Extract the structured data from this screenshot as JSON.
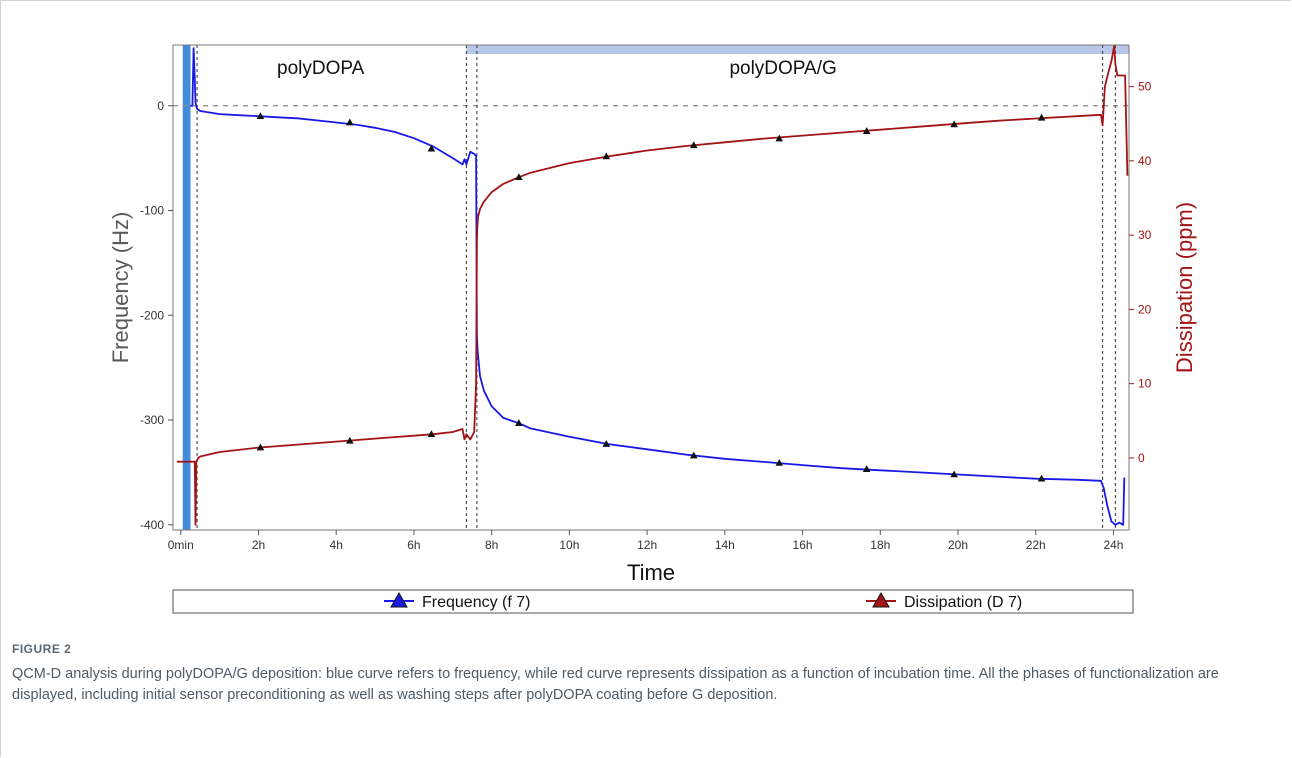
{
  "figure": {
    "label": "FIGURE 2",
    "caption": "QCM-D analysis during polyDOPA/G deposition: blue curve refers to frequency, while red curve represents dissipation as a function of incubation time. All the phases of functionalization are displayed, including initial sensor preconditioning as well as washing steps after polyDOPA coating before G deposition."
  },
  "chart_data": {
    "type": "line",
    "xlabel": "Time",
    "ylabel_left": "Frequency (Hz)",
    "ylabel_right": "Dissipation (ppm)",
    "x_unit": "hours",
    "xlim": [
      -0.2,
      24.4
    ],
    "ylim_left": [
      -405,
      58
    ],
    "ylim_right": [
      -9.7,
      55.6
    ],
    "x_ticks": [
      {
        "value": 0,
        "label": "0min"
      },
      {
        "value": 2,
        "label": "2h"
      },
      {
        "value": 4,
        "label": "4h"
      },
      {
        "value": 6,
        "label": "6h"
      },
      {
        "value": 8,
        "label": "8h"
      },
      {
        "value": 10,
        "label": "10h"
      },
      {
        "value": 12,
        "label": "12h"
      },
      {
        "value": 14,
        "label": "14h"
      },
      {
        "value": 16,
        "label": "16h"
      },
      {
        "value": 18,
        "label": "18h"
      },
      {
        "value": 20,
        "label": "20h"
      },
      {
        "value": 22,
        "label": "22h"
      },
      {
        "value": 24,
        "label": "24h"
      }
    ],
    "y_ticks_left": [
      {
        "value": 0,
        "label": "0"
      },
      {
        "value": -100,
        "label": "-100"
      },
      {
        "value": -200,
        "label": "-200"
      },
      {
        "value": -300,
        "label": "-300"
      },
      {
        "value": -400,
        "label": "-400"
      }
    ],
    "y_ticks_right": [
      {
        "value": 50,
        "label": "50"
      },
      {
        "value": 40,
        "label": "40"
      },
      {
        "value": 30,
        "label": "30"
      },
      {
        "value": 20,
        "label": "20"
      },
      {
        "value": 10,
        "label": "10"
      },
      {
        "value": 0,
        "label": "0"
      }
    ],
    "reference_line": {
      "axis": "left",
      "value": 0
    },
    "phase_lines_x": [
      0.42,
      7.35,
      7.62,
      23.72,
      24.05
    ],
    "phase_labels": [
      {
        "text": "polyDOPA",
        "x": 3.6
      },
      {
        "text": "polyDOPA/G",
        "x": 15.5
      }
    ],
    "shaded_regions": [
      {
        "x0": 0.05,
        "x1": 0.25,
        "color": "#2f7fd8"
      },
      {
        "x0": 7.35,
        "x1": 24.4,
        "color": "#b8c7e8",
        "band": "top"
      }
    ],
    "series": [
      {
        "name": "Frequency (f 7)",
        "axis": "left",
        "color": "#1919e6",
        "x": [
          0.25,
          0.3,
          0.33,
          0.36,
          0.38,
          0.4,
          0.42,
          0.5,
          1.0,
          1.5,
          2.0,
          2.5,
          3.0,
          3.5,
          4.0,
          4.5,
          5.0,
          5.5,
          6.0,
          6.5,
          7.0,
          7.25,
          7.3,
          7.35,
          7.45,
          7.55,
          7.6,
          7.62,
          7.64,
          7.7,
          7.8,
          8.0,
          8.3,
          8.7,
          9.0,
          10.0,
          11.0,
          12.0,
          13.0,
          14.0,
          15.0,
          16.0,
          17.0,
          18.0,
          19.0,
          20.0,
          21.0,
          22.0,
          23.0,
          23.68,
          23.75,
          23.85,
          23.95,
          24.05,
          24.15,
          24.25,
          24.28
        ],
        "y": [
          0,
          0,
          55,
          25,
          3,
          0,
          -3,
          -5,
          -8,
          -9,
          -10,
          -11,
          -12,
          -14,
          -16,
          -18,
          -21,
          -25,
          -31,
          -39,
          -50,
          -56,
          -51,
          -56,
          -44,
          -46,
          -48,
          -220,
          -235,
          -258,
          -272,
          -287,
          -298,
          -303,
          -308,
          -316,
          -323,
          -328,
          -333,
          -337,
          -340,
          -343,
          -346,
          -348,
          -350,
          -352,
          -354,
          -356,
          -357,
          -358,
          -365,
          -383,
          -397,
          -400,
          -398,
          -400,
          -355
        ]
      },
      {
        "name": "Dissipation (D 7)",
        "axis": "right",
        "color": "#a31414",
        "x": [
          -0.1,
          0.2,
          0.3,
          0.36,
          0.38,
          0.4,
          0.45,
          0.5,
          1.0,
          2.0,
          3.0,
          4.0,
          5.0,
          6.0,
          6.5,
          7.0,
          7.25,
          7.3,
          7.35,
          7.45,
          7.55,
          7.6,
          7.62,
          7.63,
          7.65,
          7.7,
          7.8,
          8.0,
          8.3,
          8.7,
          9.0,
          10.0,
          11.0,
          12.0,
          13.0,
          14.0,
          15.0,
          16.0,
          17.0,
          18.0,
          19.0,
          20.0,
          21.0,
          22.0,
          23.0,
          23.68,
          23.72,
          23.78,
          23.85,
          23.95,
          24.02,
          24.05,
          24.1,
          24.3,
          24.36
        ],
        "y": [
          -0.5,
          -0.5,
          -0.5,
          -0.5,
          -9,
          -0.5,
          0,
          0.2,
          0.8,
          1.4,
          1.8,
          2.2,
          2.6,
          3.0,
          3.2,
          3.5,
          3.9,
          2.5,
          3.2,
          2.5,
          3.5,
          10,
          29,
          31,
          32.5,
          33.5,
          34.5,
          35.8,
          36.9,
          37.8,
          38.4,
          39.7,
          40.6,
          41.4,
          42.0,
          42.5,
          43.0,
          43.4,
          43.8,
          44.2,
          44.6,
          45.0,
          45.4,
          45.7,
          46.0,
          46.2,
          44.8,
          50,
          51.5,
          53.5,
          55.5,
          53,
          51.5,
          51.5,
          38
        ]
      }
    ],
    "markers": [
      {
        "series": 0,
        "x": 2.05,
        "y": -10
      },
      {
        "series": 0,
        "x": 4.35,
        "y": -16
      },
      {
        "series": 0,
        "x": 6.45,
        "y": -41
      },
      {
        "series": 0,
        "x": 8.7,
        "y": -303
      },
      {
        "series": 0,
        "x": 10.95,
        "y": -323
      },
      {
        "series": 0,
        "x": 13.2,
        "y": -334
      },
      {
        "series": 0,
        "x": 15.4,
        "y": -341
      },
      {
        "series": 0,
        "x": 17.65,
        "y": -347
      },
      {
        "series": 0,
        "x": 19.9,
        "y": -352
      },
      {
        "series": 0,
        "x": 22.15,
        "y": -356
      },
      {
        "series": 1,
        "x": 2.05,
        "y": 1.4
      },
      {
        "series": 1,
        "x": 4.35,
        "y": 2.3
      },
      {
        "series": 1,
        "x": 6.45,
        "y": 3.2
      },
      {
        "series": 1,
        "x": 8.7,
        "y": 37.8
      },
      {
        "series": 1,
        "x": 10.95,
        "y": 40.6
      },
      {
        "series": 1,
        "x": 13.2,
        "y": 42.1
      },
      {
        "series": 1,
        "x": 15.4,
        "y": 43.0
      },
      {
        "series": 1,
        "x": 17.65,
        "y": 44.0
      },
      {
        "series": 1,
        "x": 19.9,
        "y": 44.9
      },
      {
        "series": 1,
        "x": 22.15,
        "y": 45.8
      }
    ],
    "legend": {
      "position": "bottom",
      "entries": [
        {
          "label": "Frequency (f 7)",
          "color": "#1919e6"
        },
        {
          "label": "Dissipation (D 7)",
          "color": "#a31414"
        }
      ]
    },
    "grid": false
  },
  "colors": {
    "frequency": "#1919e6",
    "dissipation": "#a31414",
    "left_axis_text": "#333333",
    "right_axis_text": "#a31414",
    "axis_title_left": "#5a5a5a",
    "axis_title_right": "#a31414"
  }
}
